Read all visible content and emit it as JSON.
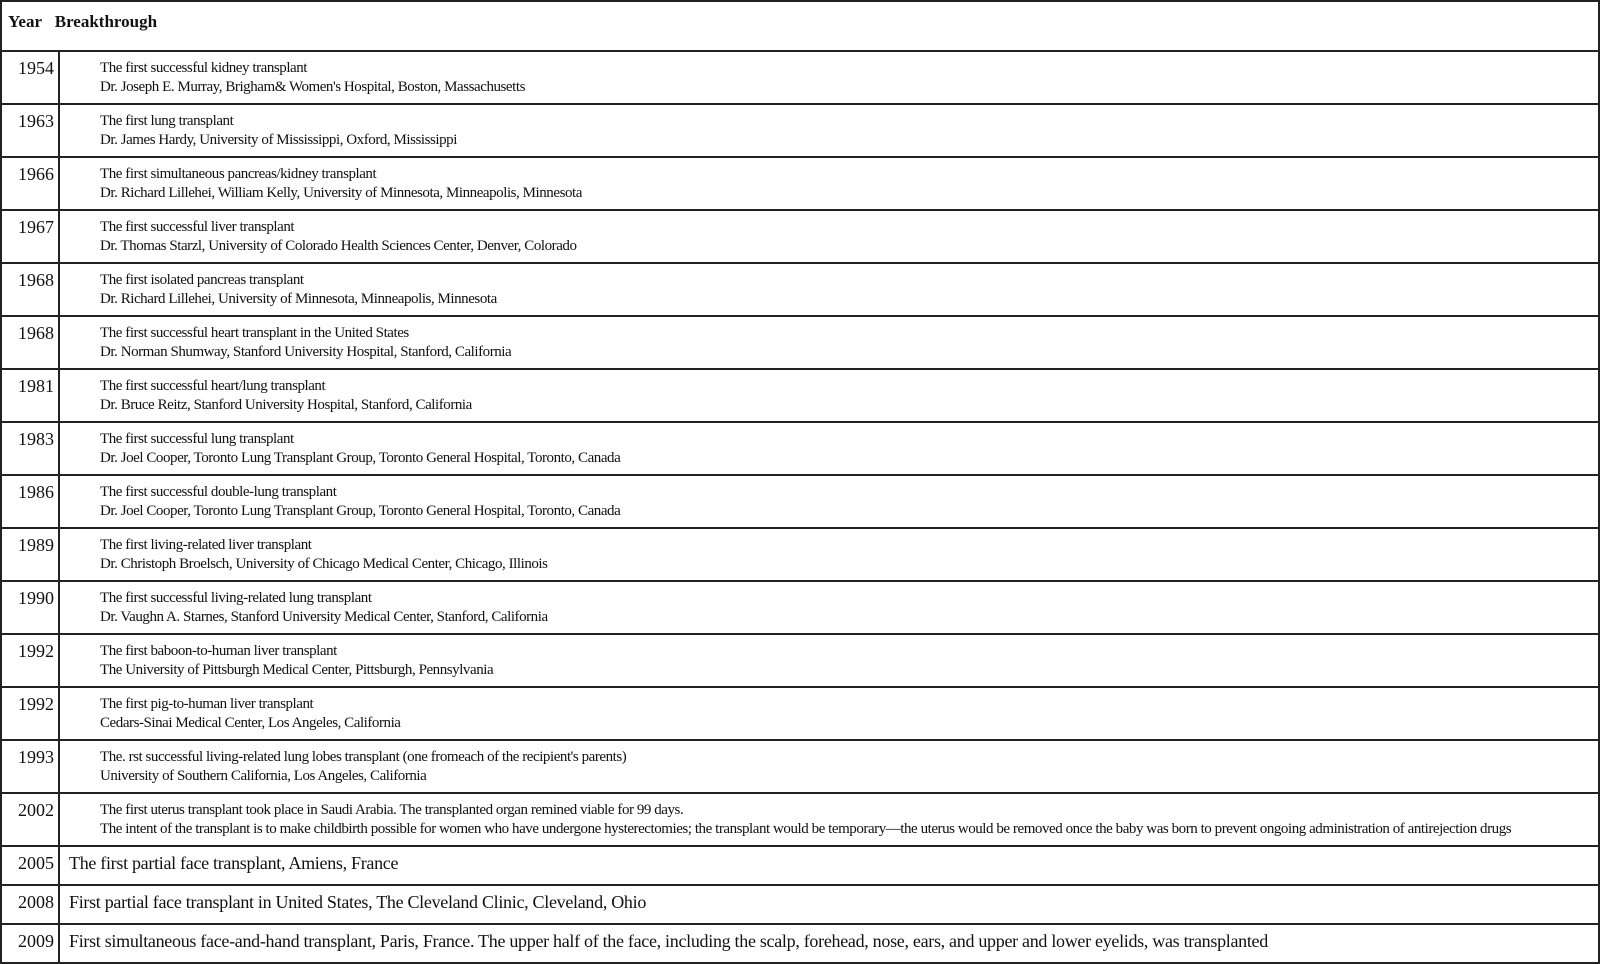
{
  "table": {
    "headers": {
      "year": "Year",
      "breakthrough": "Breakthrough"
    },
    "rows": [
      {
        "year": "1954",
        "lines": [
          "The first successful kidney transplant",
          "Dr. Joseph E. Murray, Brigham& Women's Hospital, Boston, Massachusetts"
        ]
      },
      {
        "year": "1963",
        "lines": [
          "The first lung transplant",
          "Dr. James Hardy, University of Mississippi, Oxford, Mississippi"
        ]
      },
      {
        "year": "1966",
        "lines": [
          "The first simultaneous pancreas/kidney transplant",
          "Dr. Richard Lillehei, William Kelly, University of Minnesota, Minneapolis, Minnesota"
        ]
      },
      {
        "year": "1967",
        "lines": [
          "The first successful liver transplant",
          "Dr. Thomas Starzl, University of Colorado Health Sciences Center, Denver, Colorado"
        ]
      },
      {
        "year": "1968",
        "lines": [
          "The first isolated pancreas transplant",
          "Dr. Richard Lillehei, University of Minnesota, Minneapolis, Minnesota"
        ]
      },
      {
        "year": "1968",
        "lines": [
          "The first successful heart transplant in the United States",
          "Dr. Norman Shumway, Stanford University Hospital, Stanford, California"
        ]
      },
      {
        "year": "1981",
        "lines": [
          "The first successful heart/lung transplant",
          "Dr. Bruce Reitz, Stanford University Hospital, Stanford, California"
        ]
      },
      {
        "year": "1983",
        "lines": [
          "The first successful lung transplant",
          "Dr. Joel Cooper, Toronto Lung Transplant Group, Toronto General Hospital, Toronto, Canada"
        ]
      },
      {
        "year": "1986",
        "lines": [
          "The first successful double-lung transplant",
          "Dr. Joel Cooper, Toronto Lung Transplant Group, Toronto General Hospital, Toronto, Canada"
        ]
      },
      {
        "year": "1989",
        "lines": [
          "The first living-related liver transplant",
          "Dr. Christoph Broelsch, University of Chicago Medical Center, Chicago, Illinois"
        ]
      },
      {
        "year": "1990",
        "lines": [
          "The first successful living-related lung transplant",
          "Dr. Vaughn A. Starnes, Stanford University Medical Center, Stanford, California"
        ]
      },
      {
        "year": "1992",
        "lines": [
          "The first baboon-to-human liver transplant",
          "The University of Pittsburgh Medical Center, Pittsburgh, Pennsylvania"
        ]
      },
      {
        "year": "1992",
        "lines": [
          "The first pig-to-human liver transplant",
          "Cedars-Sinai Medical Center, Los Angeles, California"
        ]
      },
      {
        "year": "1993",
        "lines": [
          "The. rst successful living-related lung lobes transplant (one fromeach of the recipient's parents)",
          "University of Southern California, Los Angeles, California"
        ]
      },
      {
        "year": "2002",
        "lines": [
          "The first uterus transplant took place in Saudi Arabia. The transplanted organ remined viable for 99 days.",
          "The intent of the transplant is to make childbirth possible for women who have undergone hysterectomies; the transplant would be temporary—the uterus would be removed once the baby was born to prevent ongoing administration of antirejection drugs"
        ]
      }
    ],
    "large_rows": [
      {
        "year": "2005",
        "text": "The first partial face transplant, Amiens, France"
      },
      {
        "year": "2008",
        "text": "First partial face transplant in United States, The Cleveland Clinic, Cleveland, Ohio"
      },
      {
        "year": "2009",
        "text": "First simultaneous face-and-hand transplant, Paris, France. The upper half of the face, including the scalp, forehead, nose, ears, and upper and lower eyelids, was transplanted"
      }
    ]
  }
}
